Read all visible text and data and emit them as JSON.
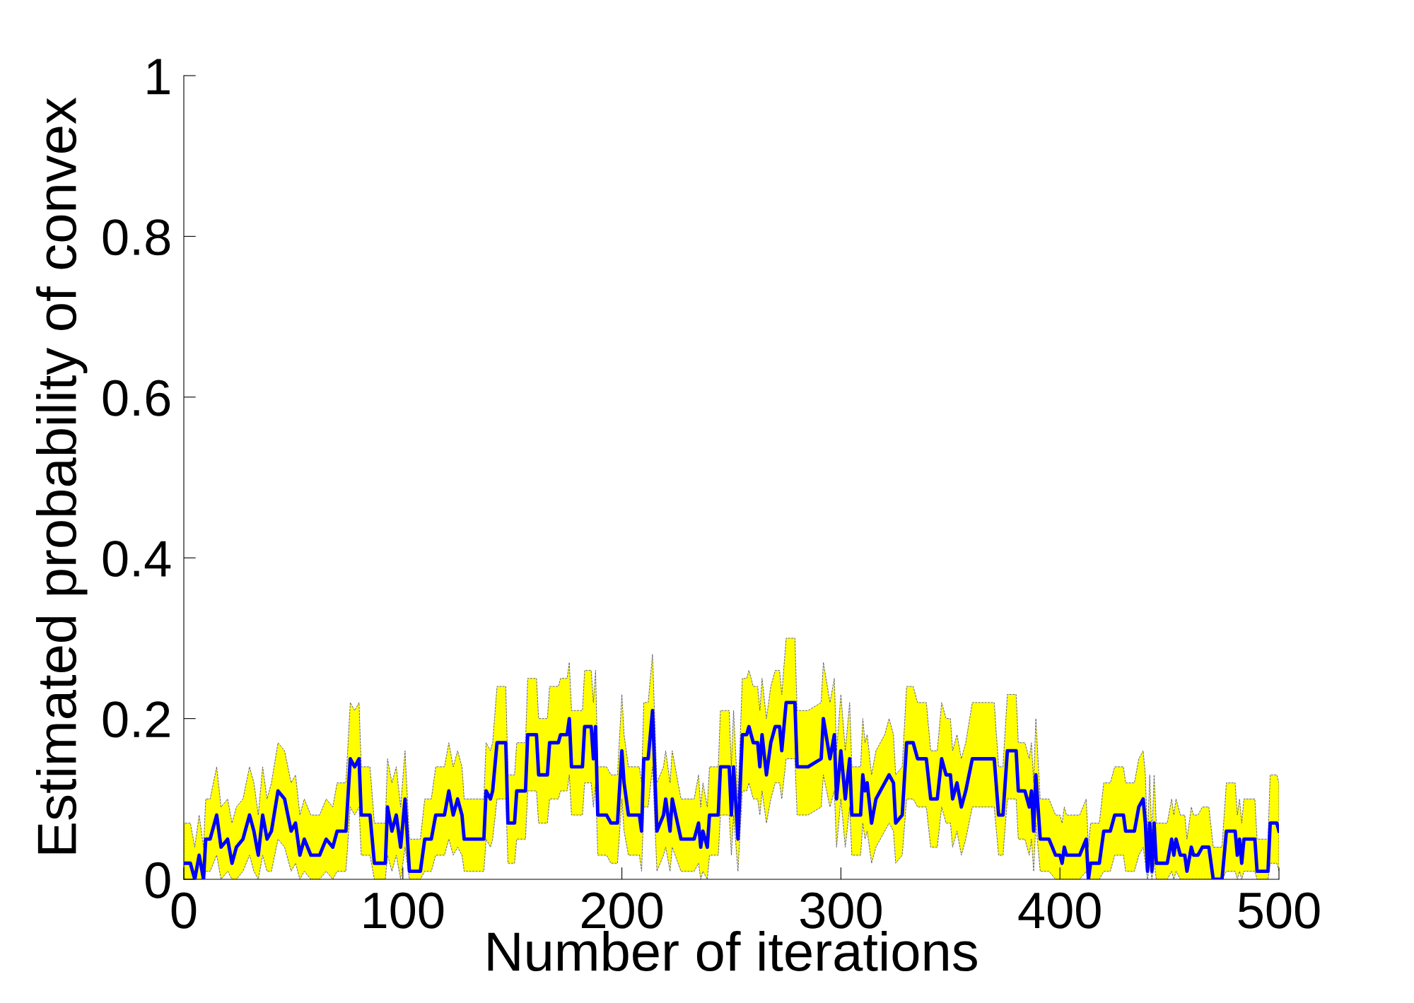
{
  "chart_data": {
    "type": "line",
    "xlabel": "Number of iterations",
    "ylabel": "Estimated probability of convex",
    "xlim": [
      0,
      500
    ],
    "xticks": [
      0,
      100,
      200,
      300,
      400,
      500
    ],
    "ylim": [
      0,
      1
    ],
    "yticks": [
      0,
      0.2,
      0.4,
      0.6,
      0.8,
      1
    ],
    "grid": false,
    "legend": false,
    "line_style": "solid",
    "marker": "none",
    "series": [
      {
        "color": "#0000ff",
        "x": [
          0,
          3,
          5,
          7,
          9,
          10,
          12,
          15,
          17,
          20,
          22,
          24,
          27,
          30,
          32,
          34,
          36,
          38,
          40,
          43,
          46,
          49,
          51,
          53,
          55,
          58,
          62,
          65,
          68,
          70,
          74,
          76,
          78,
          80,
          81,
          85,
          87,
          92,
          93,
          95,
          97,
          99,
          101,
          103,
          108,
          110,
          113,
          115,
          119,
          121,
          123,
          125,
          127,
          128,
          137,
          138,
          140,
          141,
          143,
          147,
          148,
          151,
          152,
          156,
          157,
          161,
          162,
          166,
          167,
          171,
          172,
          175,
          176,
          177,
          182,
          183,
          186,
          187,
          188,
          189,
          193,
          195,
          198,
          200,
          201,
          203,
          208,
          209,
          210,
          212,
          214,
          216,
          219,
          220,
          222,
          223,
          227,
          233,
          235,
          236,
          237,
          239,
          240,
          244,
          245,
          249,
          250,
          251,
          253,
          255,
          257,
          258,
          260,
          262,
          263,
          264,
          266,
          268,
          270,
          272,
          273,
          275,
          279,
          280,
          285,
          291,
          292,
          295,
          297,
          298,
          300,
          302,
          304,
          305,
          309,
          310,
          311,
          312,
          314,
          316,
          320,
          322,
          324,
          325,
          328,
          330,
          333,
          335,
          339,
          341,
          344,
          346,
          348,
          350,
          351,
          353,
          355,
          357,
          360,
          370,
          372,
          374,
          376,
          380,
          381,
          384,
          386,
          387,
          388,
          389,
          391,
          395,
          398,
          400,
          401,
          402,
          403,
          409,
          412,
          413,
          414,
          418,
          420,
          423,
          425,
          429,
          430,
          434,
          436,
          438,
          439,
          440,
          441,
          442,
          443,
          444,
          449,
          451,
          452,
          453,
          455,
          457,
          458,
          460,
          461,
          463,
          465,
          468,
          470,
          474,
          476,
          480,
          481,
          482,
          483,
          484,
          489,
          490,
          495,
          496,
          499,
          500
        ],
        "values": [
          0.02,
          0.02,
          0,
          0.03,
          0,
          0.05,
          0.05,
          0.08,
          0.04,
          0.05,
          0.02,
          0.04,
          0.05,
          0.08,
          0.06,
          0.03,
          0.08,
          0.05,
          0.06,
          0.11,
          0.1,
          0.06,
          0.07,
          0.03,
          0.05,
          0.03,
          0.03,
          0.05,
          0.04,
          0.06,
          0.06,
          0.15,
          0.14,
          0.15,
          0.08,
          0.08,
          0.02,
          0.02,
          0.09,
          0.06,
          0.08,
          0.04,
          0.1,
          0.01,
          0.01,
          0.05,
          0.05,
          0.08,
          0.08,
          0.11,
          0.08,
          0.1,
          0.08,
          0.05,
          0.05,
          0.11,
          0.1,
          0.11,
          0.17,
          0.17,
          0.07,
          0.07,
          0.11,
          0.11,
          0.18,
          0.18,
          0.13,
          0.13,
          0.17,
          0.17,
          0.18,
          0.18,
          0.2,
          0.14,
          0.14,
          0.19,
          0.19,
          0.15,
          0.19,
          0.08,
          0.08,
          0.07,
          0.07,
          0.16,
          0.12,
          0.08,
          0.08,
          0.06,
          0.15,
          0.15,
          0.21,
          0.06,
          0.08,
          0.1,
          0.06,
          0.1,
          0.05,
          0.05,
          0.07,
          0.04,
          0.06,
          0.04,
          0.08,
          0.08,
          0.14,
          0.14,
          0.08,
          0.14,
          0.05,
          0.18,
          0.18,
          0.19,
          0.17,
          0.17,
          0.14,
          0.18,
          0.13,
          0.17,
          0.19,
          0.19,
          0.16,
          0.22,
          0.22,
          0.14,
          0.14,
          0.15,
          0.2,
          0.15,
          0.18,
          0.1,
          0.16,
          0.1,
          0.15,
          0.08,
          0.08,
          0.13,
          0.11,
          0.12,
          0.07,
          0.1,
          0.12,
          0.13,
          0.12,
          0.07,
          0.08,
          0.17,
          0.17,
          0.15,
          0.15,
          0.1,
          0.1,
          0.15,
          0.13,
          0.13,
          0.1,
          0.12,
          0.09,
          0.11,
          0.15,
          0.15,
          0.08,
          0.08,
          0.16,
          0.16,
          0.11,
          0.11,
          0.09,
          0.11,
          0.06,
          0.13,
          0.05,
          0.05,
          0.03,
          0.03,
          0.02,
          0.04,
          0.03,
          0.03,
          0.05,
          0,
          0.02,
          0.02,
          0.06,
          0.06,
          0.08,
          0.08,
          0.06,
          0.06,
          0.09,
          0.1,
          0.07,
          0.01,
          0.07,
          0.01,
          0.07,
          0.02,
          0.02,
          0.05,
          0.03,
          0.05,
          0.03,
          0.03,
          0.01,
          0.04,
          0.03,
          0.03,
          0.04,
          0.04,
          0,
          0,
          0.06,
          0.06,
          0.03,
          0.05,
          0.02,
          0.05,
          0.05,
          0.01,
          0.01,
          0.07,
          0.07,
          0.06
        ],
        "lower": [
          0,
          0,
          0,
          0,
          0,
          0.01,
          0.01,
          0.03,
          0,
          0.01,
          0,
          0,
          0.01,
          0.03,
          0.01,
          0,
          0.03,
          0.01,
          0.01,
          0.05,
          0.04,
          0.01,
          0.02,
          0,
          0.01,
          0,
          0,
          0.01,
          0,
          0.01,
          0.01,
          0.09,
          0.08,
          0.09,
          0.03,
          0.03,
          0,
          0,
          0.03,
          0.01,
          0.03,
          0,
          0.04,
          0,
          0,
          0.01,
          0.01,
          0.03,
          0.03,
          0.05,
          0.03,
          0.04,
          0.03,
          0.01,
          0.01,
          0.05,
          0.04,
          0.05,
          0.1,
          0.1,
          0.02,
          0.02,
          0.05,
          0.05,
          0.11,
          0.11,
          0.07,
          0.07,
          0.1,
          0.1,
          0.11,
          0.11,
          0.13,
          0.08,
          0.08,
          0.12,
          0.12,
          0.09,
          0.12,
          0.03,
          0.03,
          0.02,
          0.02,
          0.1,
          0.06,
          0.03,
          0.03,
          0.01,
          0.09,
          0.09,
          0.14,
          0.01,
          0.03,
          0.04,
          0.01,
          0.04,
          0.01,
          0.01,
          0.02,
          0,
          0.01,
          0,
          0.03,
          0.03,
          0.08,
          0.08,
          0.03,
          0.08,
          0.01,
          0.11,
          0.11,
          0.12,
          0.1,
          0.1,
          0.08,
          0.11,
          0.07,
          0.1,
          0.12,
          0.12,
          0.1,
          0.15,
          0.15,
          0.08,
          0.08,
          0.09,
          0.13,
          0.09,
          0.11,
          0.04,
          0.1,
          0.04,
          0.09,
          0.03,
          0.03,
          0.07,
          0.05,
          0.06,
          0.02,
          0.04,
          0.06,
          0.07,
          0.06,
          0.02,
          0.03,
          0.1,
          0.1,
          0.09,
          0.09,
          0.04,
          0.04,
          0.09,
          0.07,
          0.07,
          0.04,
          0.06,
          0.03,
          0.05,
          0.09,
          0.09,
          0.03,
          0.03,
          0.1,
          0.1,
          0.05,
          0.05,
          0.03,
          0.05,
          0.01,
          0.07,
          0.01,
          0.01,
          0,
          0,
          0,
          0,
          0,
          0,
          0.01,
          0,
          0,
          0,
          0.01,
          0.01,
          0.03,
          0.03,
          0.01,
          0.01,
          0.03,
          0.04,
          0.02,
          0,
          0.02,
          0,
          0.02,
          0,
          0,
          0.01,
          0,
          0.01,
          0,
          0,
          0,
          0,
          0,
          0,
          0,
          0,
          0,
          0,
          0.01,
          0.01,
          0,
          0.01,
          0,
          0.01,
          0.01,
          0,
          0,
          0.02,
          0.02,
          0.01
        ],
        "upper": [
          0.07,
          0.07,
          0.04,
          0.08,
          0.04,
          0.1,
          0.1,
          0.14,
          0.09,
          0.1,
          0.07,
          0.09,
          0.1,
          0.14,
          0.12,
          0.08,
          0.14,
          0.1,
          0.12,
          0.17,
          0.16,
          0.12,
          0.13,
          0.08,
          0.1,
          0.08,
          0.08,
          0.1,
          0.09,
          0.12,
          0.12,
          0.22,
          0.21,
          0.22,
          0.14,
          0.14,
          0.07,
          0.07,
          0.15,
          0.12,
          0.14,
          0.09,
          0.16,
          0.05,
          0.05,
          0.1,
          0.1,
          0.14,
          0.14,
          0.17,
          0.14,
          0.16,
          0.14,
          0.1,
          0.1,
          0.17,
          0.16,
          0.17,
          0.24,
          0.24,
          0.13,
          0.13,
          0.17,
          0.17,
          0.25,
          0.25,
          0.2,
          0.2,
          0.24,
          0.24,
          0.25,
          0.25,
          0.27,
          0.21,
          0.21,
          0.26,
          0.26,
          0.22,
          0.26,
          0.14,
          0.14,
          0.13,
          0.13,
          0.23,
          0.18,
          0.14,
          0.14,
          0.12,
          0.22,
          0.22,
          0.28,
          0.12,
          0.14,
          0.16,
          0.12,
          0.16,
          0.1,
          0.1,
          0.13,
          0.09,
          0.12,
          0.09,
          0.14,
          0.14,
          0.21,
          0.21,
          0.14,
          0.21,
          0.1,
          0.25,
          0.25,
          0.26,
          0.24,
          0.24,
          0.21,
          0.25,
          0.2,
          0.24,
          0.26,
          0.26,
          0.23,
          0.3,
          0.3,
          0.21,
          0.21,
          0.22,
          0.27,
          0.22,
          0.25,
          0.16,
          0.23,
          0.16,
          0.22,
          0.14,
          0.14,
          0.2,
          0.17,
          0.18,
          0.13,
          0.16,
          0.18,
          0.2,
          0.18,
          0.13,
          0.14,
          0.24,
          0.24,
          0.22,
          0.22,
          0.16,
          0.16,
          0.22,
          0.2,
          0.2,
          0.16,
          0.18,
          0.15,
          0.17,
          0.22,
          0.22,
          0.14,
          0.14,
          0.23,
          0.23,
          0.17,
          0.17,
          0.15,
          0.17,
          0.12,
          0.2,
          0.1,
          0.1,
          0.08,
          0.08,
          0.07,
          0.09,
          0.08,
          0.08,
          0.1,
          0.04,
          0.07,
          0.07,
          0.12,
          0.12,
          0.14,
          0.14,
          0.12,
          0.12,
          0.15,
          0.16,
          0.13,
          0.05,
          0.13,
          0.05,
          0.13,
          0.07,
          0.07,
          0.1,
          0.08,
          0.1,
          0.08,
          0.08,
          0.05,
          0.09,
          0.08,
          0.08,
          0.09,
          0.09,
          0.04,
          0.04,
          0.12,
          0.12,
          0.08,
          0.1,
          0.07,
          0.1,
          0.1,
          0.05,
          0.05,
          0.13,
          0.13,
          0.12
        ]
      }
    ]
  }
}
